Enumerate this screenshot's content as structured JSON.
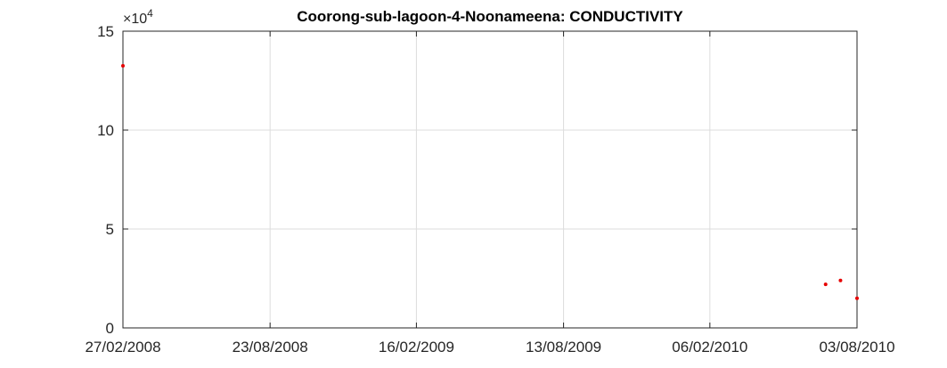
{
  "chart_data": {
    "type": "scatter",
    "title": "Coorong-sub-lagoon-4-Noonameena: CONDUCTIVITY",
    "xlabel": "",
    "ylabel": "",
    "y_exponent_label": {
      "base": "×10",
      "power": "4"
    },
    "x_tick_labels": [
      "27/02/2008",
      "23/08/2008",
      "16/02/2009",
      "13/08/2009",
      "06/02/2010",
      "03/08/2010"
    ],
    "x_ticks": [
      "2008-02-27",
      "2008-08-23",
      "2009-02-16",
      "2009-08-13",
      "2010-02-06",
      "2010-08-03"
    ],
    "xlim": [
      "2008-02-27",
      "2010-08-03"
    ],
    "y_tick_labels": [
      "0",
      "5",
      "10",
      "15"
    ],
    "y_ticks": [
      0,
      5,
      10,
      15
    ],
    "ylim": [
      0,
      15
    ],
    "y_scale_multiplier": 10000,
    "grid": true,
    "marker_color": "#e60000",
    "series": [
      {
        "points": [
          {
            "x": "2008-02-27",
            "y": 13.25
          },
          {
            "x": "2010-06-26",
            "y": 2.2
          },
          {
            "x": "2010-07-14",
            "y": 2.4
          },
          {
            "x": "2010-08-03",
            "y": 1.5
          }
        ]
      }
    ]
  }
}
